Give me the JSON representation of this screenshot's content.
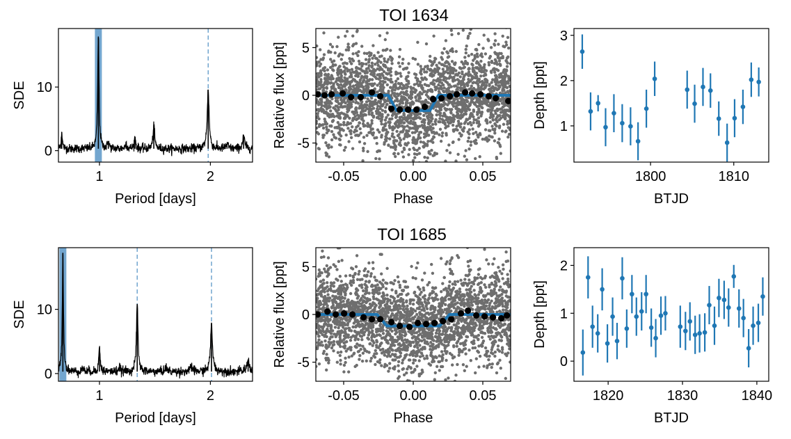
{
  "chart_data": [
    {
      "type": "line",
      "panel": "periodogram",
      "xlabel": "Period [days]",
      "ylabel": "SDE",
      "xlim": [
        0.63,
        2.38
      ],
      "ylim": [
        -1.8,
        19.2
      ],
      "xticks": [
        1,
        2
      ],
      "xtick_labels": [
        "1",
        "2"
      ],
      "yticks": [
        0,
        10
      ],
      "ytick_labels": [
        "0",
        "10"
      ],
      "highlight_period": 0.99,
      "alias_lines": [
        1.98
      ],
      "peaks": [
        {
          "x": 0.99,
          "y": 17.8
        },
        {
          "x": 1.98,
          "y": 9.6
        },
        {
          "x": 1.49,
          "y": 4.0
        },
        {
          "x": 2.3,
          "y": 2.2
        },
        {
          "x": 1.32,
          "y": 2.0
        },
        {
          "x": 0.66,
          "y": 2.9
        },
        {
          "x": 1.08,
          "y": 1.5
        },
        {
          "x": 1.24,
          "y": 1.2
        },
        {
          "x": 2.15,
          "y": 1.0
        }
      ],
      "colors": {
        "line": "#000000",
        "highlight": "#5b97c7",
        "alias": "#5b97c7"
      }
    },
    {
      "type": "scatter",
      "panel": "folded_lightcurve",
      "title": "TOI 1634",
      "xlabel": "Phase",
      "ylabel": "Relative flux [ppt]",
      "xlim": [
        -0.07,
        0.07
      ],
      "ylim": [
        -7,
        7
      ],
      "xticks": [
        -0.05,
        0.0,
        0.05
      ],
      "xtick_labels": [
        "-0.05",
        "0.00",
        "0.05"
      ],
      "yticks": [
        -5,
        0,
        5
      ],
      "ytick_labels": [
        "-5",
        "0",
        "5"
      ],
      "noise_sigma_ppt": 2.6,
      "model": {
        "depth": 1.6,
        "half_width": 0.018,
        "ingress": 0.006
      },
      "binned": {
        "x": [
          -0.0686,
          -0.0637,
          -0.0587,
          -0.0507,
          -0.0447,
          -0.0377,
          -0.0297,
          -0.0237,
          -0.0157,
          -0.0097,
          -0.0037,
          0.0023,
          0.0083,
          0.0143,
          0.0203,
          0.0263,
          0.0313,
          0.0373,
          0.0423,
          0.0483,
          0.0543,
          0.0593,
          0.0683
        ],
        "y": [
          0.1,
          0.0,
          0.1,
          0.2,
          -0.2,
          -0.2,
          0.3,
          -0.1,
          -1.4,
          -1.5,
          -1.5,
          -1.5,
          -1.2,
          -0.4,
          -0.3,
          -0.1,
          0.1,
          0.3,
          0.2,
          0.1,
          -0.1,
          -0.3,
          -0.6
        ]
      },
      "colors": {
        "points": "#6e6e6e",
        "model": "#1f77b4",
        "binned": "#000000"
      }
    },
    {
      "type": "scatter",
      "panel": "transit_depths",
      "xlabel": "BTJD",
      "ylabel": "Depth [ppt]",
      "xlim": [
        1790.8,
        1814.2
      ],
      "ylim": [
        0.2,
        3.15
      ],
      "xticks": [
        1800,
        1810
      ],
      "xtick_labels": [
        "1800",
        "1810"
      ],
      "yticks": [
        1,
        2,
        3
      ],
      "ytick_labels": [
        "1",
        "2",
        "3"
      ],
      "x": [
        1791.8,
        1792.8,
        1793.7,
        1794.6,
        1795.6,
        1796.6,
        1797.6,
        1798.5,
        1799.5,
        1800.5,
        1804.4,
        1805.3,
        1806.3,
        1807.2,
        1808.2,
        1809.2,
        1810.1,
        1811.1,
        1812.1,
        1813.0
      ],
      "y": [
        2.64,
        1.32,
        1.5,
        0.97,
        1.28,
        1.06,
        0.99,
        0.66,
        1.38,
        2.04,
        1.8,
        1.49,
        1.86,
        1.78,
        1.16,
        0.63,
        1.17,
        1.42,
        2.02,
        1.97
      ],
      "yerr": [
        0.38,
        0.42,
        0.18,
        0.42,
        0.42,
        0.42,
        0.42,
        0.42,
        0.42,
        0.38,
        0.42,
        0.42,
        0.42,
        0.38,
        0.38,
        0.42,
        0.42,
        0.38,
        0.38,
        0.32
      ],
      "colors": {
        "points": "#1f77b4"
      }
    },
    {
      "type": "line",
      "panel": "periodogram",
      "xlabel": "Period [days]",
      "ylabel": "SDE",
      "xlim": [
        0.63,
        2.38
      ],
      "ylim": [
        -1.2,
        19.6
      ],
      "xticks": [
        1,
        2
      ],
      "xtick_labels": [
        "1",
        "2"
      ],
      "yticks": [
        0,
        10
      ],
      "ytick_labels": [
        "0",
        "10"
      ],
      "highlight_period": 0.67,
      "alias_lines": [
        1.34,
        2.01
      ],
      "peaks": [
        {
          "x": 0.67,
          "y": 18.8
        },
        {
          "x": 1.34,
          "y": 10.8
        },
        {
          "x": 2.01,
          "y": 7.8
        },
        {
          "x": 1.0,
          "y": 4.1
        },
        {
          "x": 2.34,
          "y": 2.2
        },
        {
          "x": 1.83,
          "y": 1.2
        },
        {
          "x": 1.6,
          "y": 1.0
        },
        {
          "x": 1.18,
          "y": 1.1
        },
        {
          "x": 0.85,
          "y": 1.0
        }
      ],
      "colors": {
        "line": "#000000",
        "highlight": "#5b97c7",
        "alias": "#5b97c7"
      }
    },
    {
      "type": "scatter",
      "panel": "folded_lightcurve",
      "title": "TOI 1685",
      "xlabel": "Phase",
      "ylabel": "Relative flux [ppt]",
      "xlim": [
        -0.07,
        0.07
      ],
      "ylim": [
        -7,
        7
      ],
      "xticks": [
        -0.05,
        0.0,
        0.05
      ],
      "xtick_labels": [
        "-0.05",
        "0.00",
        "0.05"
      ],
      "yticks": [
        -5,
        0,
        5
      ],
      "ytick_labels": [
        "-5",
        "0",
        "5"
      ],
      "noise_sigma_ppt": 2.4,
      "model": {
        "depth": 1.2,
        "half_width": 0.026,
        "ingress": 0.007
      },
      "binned": {
        "x": [
          -0.0687,
          -0.0617,
          -0.0557,
          -0.0497,
          -0.0437,
          -0.0357,
          -0.0297,
          -0.0237,
          -0.0157,
          -0.0097,
          -0.0027,
          0.0033,
          0.0093,
          0.0153,
          0.0213,
          0.0273,
          0.0343,
          0.0393,
          0.0453,
          0.0513,
          0.0573,
          0.0633,
          0.0673
        ],
        "y": [
          0.0,
          0.3,
          0.0,
          0.1,
          0.0,
          -0.3,
          -0.5,
          -0.5,
          -0.8,
          -1.2,
          -1.3,
          -0.9,
          -1.0,
          -0.9,
          -0.7,
          -0.5,
          0.1,
          0.4,
          -0.1,
          -0.2,
          -0.3,
          -0.4,
          -0.1
        ]
      },
      "colors": {
        "points": "#6e6e6e",
        "model": "#1f77b4",
        "binned": "#000000"
      }
    },
    {
      "type": "scatter",
      "panel": "transit_depths",
      "xlabel": "BTJD",
      "ylabel": "Depth [ppt]",
      "xlim": [
        1815.4,
        1841.6
      ],
      "ylim": [
        -0.42,
        2.37
      ],
      "xticks": [
        1820,
        1830,
        1840
      ],
      "xtick_labels": [
        "1820",
        "1830",
        "1840"
      ],
      "yticks": [
        0,
        1,
        2
      ],
      "ytick_labels": [
        "0",
        "1",
        "2"
      ],
      "x": [
        1816.6,
        1817.3,
        1817.9,
        1818.6,
        1819.2,
        1819.9,
        1820.6,
        1821.2,
        1821.9,
        1822.5,
        1823.2,
        1823.8,
        1824.5,
        1825.1,
        1825.8,
        1826.4,
        1827.1,
        1827.7,
        1829.7,
        1830.4,
        1831.0,
        1831.7,
        1832.3,
        1833.0,
        1833.6,
        1834.3,
        1834.9,
        1835.6,
        1836.2,
        1836.9,
        1837.6,
        1838.2,
        1838.9,
        1839.5,
        1840.2,
        1840.8
      ],
      "y": [
        0.18,
        1.75,
        0.72,
        0.58,
        1.5,
        0.37,
        0.93,
        0.42,
        1.73,
        0.68,
        1.4,
        0.93,
        1.04,
        1.4,
        0.7,
        0.48,
        0.95,
        1.0,
        0.72,
        0.63,
        0.83,
        0.55,
        0.58,
        0.6,
        1.17,
        0.74,
        1.32,
        1.28,
        1.12,
        1.77,
        1.1,
        0.9,
        0.27,
        0.74,
        0.8,
        1.35
      ],
      "yerr": [
        0.48,
        0.44,
        0.44,
        0.4,
        0.44,
        0.4,
        0.4,
        0.38,
        0.44,
        0.4,
        0.4,
        0.4,
        0.4,
        0.4,
        0.4,
        0.4,
        0.4,
        0.36,
        0.44,
        0.4,
        0.4,
        0.4,
        0.4,
        0.4,
        0.4,
        0.4,
        0.4,
        0.4,
        0.4,
        0.24,
        0.4,
        0.4,
        0.4,
        0.4,
        0.4,
        0.4
      ],
      "colors": {
        "points": "#1f77b4"
      }
    }
  ]
}
